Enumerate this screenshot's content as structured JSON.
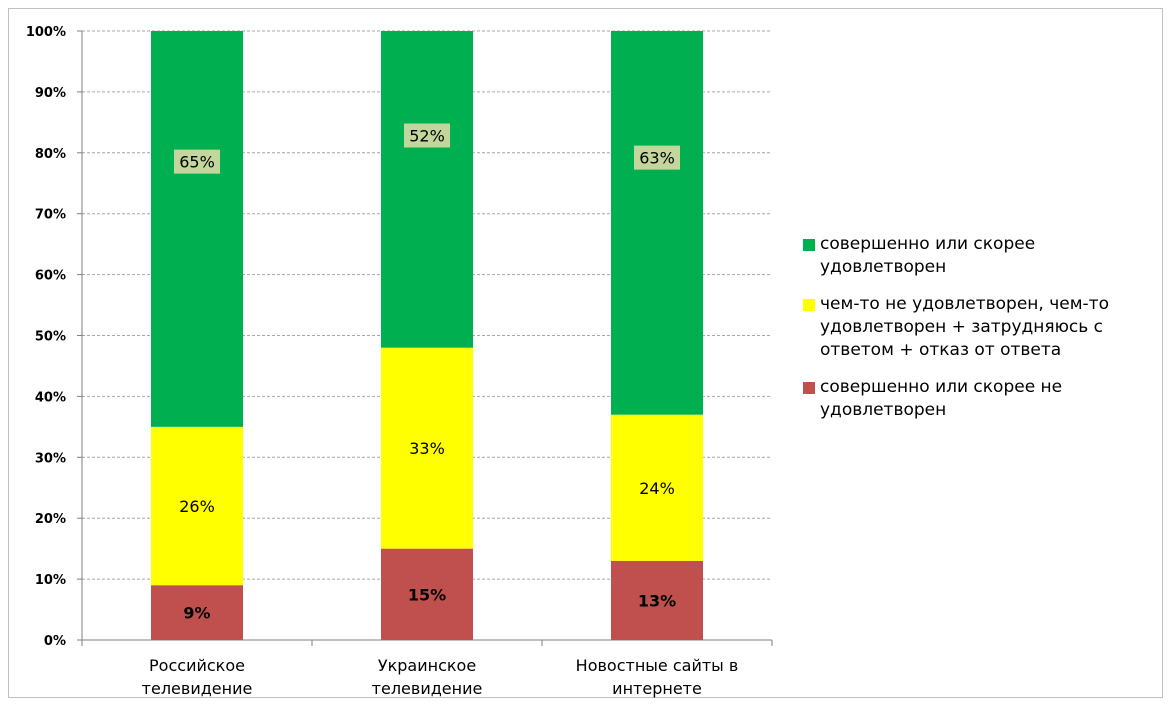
{
  "chart_data": {
    "type": "bar",
    "stacked": true,
    "percent_stacked": true,
    "categories": [
      [
        "Российское",
        "телевидение"
      ],
      [
        "Украинское",
        "телевидение"
      ],
      [
        "Новостные сайты в",
        "интернете"
      ]
    ],
    "series": [
      {
        "name": "совершенно или скорее не удовлетворен",
        "color": "#c0504d",
        "values": [
          9,
          15,
          13
        ],
        "labels": [
          "9%",
          "15%",
          "13%"
        ],
        "label_bold": true
      },
      {
        "name": "чем-то не удовлетворен, чем-то удовлетворен + затрудняюсь с ответом + отказ от ответа",
        "color": "#ffff00",
        "values": [
          26,
          33,
          24
        ],
        "labels": [
          "26%",
          "33%",
          "24%"
        ],
        "label_bold": false
      },
      {
        "name": "совершенно или скорее удовлетворен",
        "color": "#00b050",
        "values": [
          65,
          52,
          63
        ],
        "labels": [
          "65%",
          "52%",
          "63%"
        ],
        "label_bold": false,
        "label_box": "#c3d69b"
      }
    ],
    "ylim": [
      0,
      100
    ],
    "yticks": [
      "0%",
      "10%",
      "20%",
      "30%",
      "40%",
      "50%",
      "60%",
      "70%",
      "80%",
      "90%",
      "100%"
    ],
    "grid": true,
    "legend_position": "right"
  },
  "legend": {
    "items": [
      {
        "lines": [
          "совершенно или скорее",
          "удовлетворен"
        ],
        "color": "#00b050"
      },
      {
        "lines": [
          "чем-то не удовлетворен, чем-то",
          "удовлетворен + затрудняюсь с",
          "ответом + отказ от ответа"
        ],
        "color": "#ffff00"
      },
      {
        "lines": [
          "совершенно или скорее не",
          "удовлетворен"
        ],
        "color": "#c0504d"
      }
    ]
  }
}
